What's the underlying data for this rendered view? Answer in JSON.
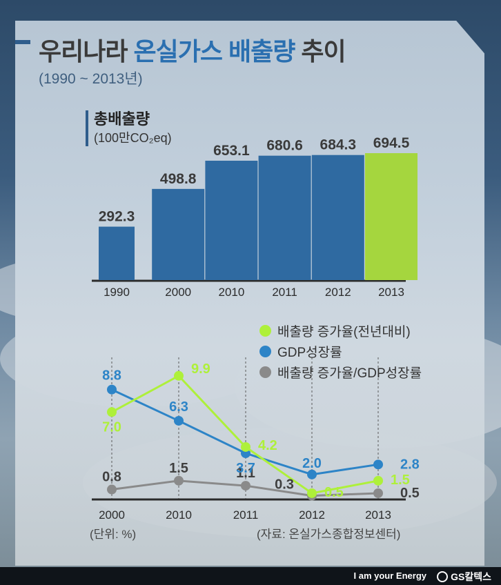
{
  "header": {
    "title_prefix": "우리나라 ",
    "title_highlight": "온실가스 배출량",
    "title_suffix": " 추이",
    "subtitle": "(1990 ~ 2013년)"
  },
  "colors": {
    "bar": "#2f6aa1",
    "bar_highlight": "#a5d63e",
    "emission_growth": "#aef03a",
    "gdp_growth": "#2d84c7",
    "ratio": "#8a8a8a"
  },
  "chart_data": [
    {
      "type": "bar",
      "title": "총배출량",
      "ylabel": "(100만CO₂eq)",
      "categories": [
        "1990",
        "2000",
        "2010",
        "2011",
        "2012",
        "2013"
      ],
      "values": [
        292.3,
        498.8,
        653.1,
        680.6,
        684.3,
        694.5
      ],
      "value_labels": [
        "292.3",
        "498.8",
        "653.1",
        "680.6",
        "684.3",
        "694.5"
      ],
      "highlight_category": "2013",
      "ylim": [
        0,
        700
      ],
      "grid": false
    },
    {
      "type": "line",
      "categories": [
        "2000",
        "2010",
        "2011",
        "2012",
        "2013"
      ],
      "series": [
        {
          "name": "배출량 증가율(전년대비)",
          "color_key": "emission_growth",
          "values": [
            7.0,
            9.9,
            4.2,
            0.5,
            1.5
          ],
          "labels": [
            "7.0",
            "9.9",
            "4.2",
            "0.5",
            "1.5"
          ]
        },
        {
          "name": "GDP성장률",
          "color_key": "gdp_growth",
          "values": [
            8.8,
            6.3,
            3.7,
            2.0,
            2.8
          ],
          "labels": [
            "8.8",
            "6.3",
            "3.7",
            "2.0",
            "2.8"
          ]
        },
        {
          "name": "배출량 증가율/GDP성장률",
          "color_key": "ratio",
          "values": [
            0.8,
            1.5,
            1.1,
            0.3,
            0.5
          ],
          "labels": [
            "0.8",
            "1.5",
            "1.1",
            "0.3",
            "0.5"
          ]
        }
      ],
      "unit_note": "(단위: %)",
      "source_note": "(자료: 온실가스종합정보센터)",
      "legend_position": "top-right",
      "ylim": [
        0,
        10
      ],
      "grid": false
    }
  ],
  "footer": {
    "tagline": "I am your Energy",
    "brand": "GS칼텍스"
  }
}
